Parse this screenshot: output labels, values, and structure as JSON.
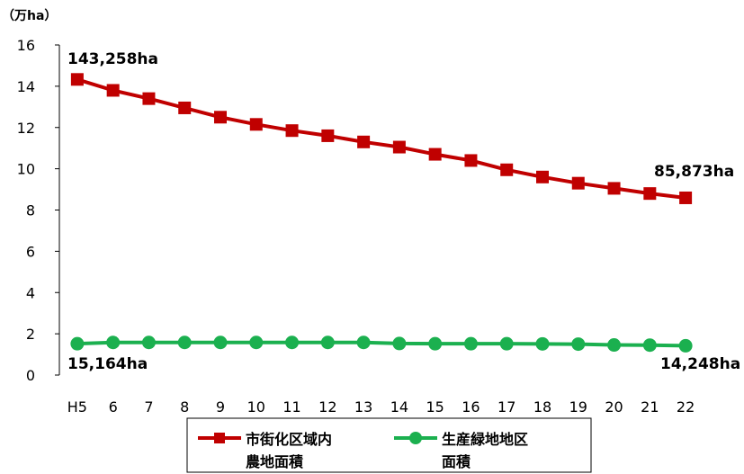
{
  "chart_data": {
    "type": "line",
    "unit_label": "（万ha）",
    "categories": [
      "H5",
      "6",
      "7",
      "8",
      "9",
      "10",
      "11",
      "12",
      "13",
      "14",
      "15",
      "16",
      "17",
      "18",
      "19",
      "20",
      "21",
      "22"
    ],
    "ylim": [
      0,
      16
    ],
    "yticks": [
      0,
      2,
      4,
      6,
      8,
      10,
      12,
      14,
      16
    ],
    "grid": false,
    "legend_position": "bottom",
    "series": [
      {
        "name": "市街化区域内農地面積",
        "legend_lines": [
          "市街化区域内",
          "農地面積"
        ],
        "color": "#C00000",
        "marker": "square",
        "values": [
          14.33,
          13.8,
          13.4,
          12.95,
          12.5,
          12.15,
          11.85,
          11.6,
          11.3,
          11.05,
          10.7,
          10.4,
          9.95,
          9.6,
          9.3,
          9.05,
          8.8,
          8.59
        ]
      },
      {
        "name": "生産緑地地区面積",
        "legend_lines": [
          "生産緑地地区",
          "面積"
        ],
        "color": "#1BB04F",
        "marker": "circle",
        "values": [
          1.52,
          1.58,
          1.58,
          1.58,
          1.58,
          1.58,
          1.58,
          1.58,
          1.58,
          1.53,
          1.52,
          1.52,
          1.52,
          1.51,
          1.5,
          1.46,
          1.45,
          1.42
        ]
      }
    ],
    "annotations": [
      {
        "text": "143,258ha"
      },
      {
        "text": "85,873ha"
      },
      {
        "text": "15,164ha"
      },
      {
        "text": "14,248ha"
      }
    ]
  }
}
